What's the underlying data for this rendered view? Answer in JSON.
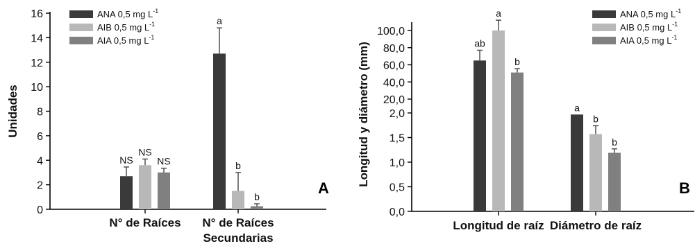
{
  "chart_data": [
    {
      "type": "bar",
      "panel_label": "A",
      "ylabel": "Unidades",
      "ylim": [
        0,
        16
      ],
      "yticks": [
        "0",
        "2",
        "4",
        "6",
        "8",
        "10",
        "12",
        "14",
        "16"
      ],
      "yticks_values": [
        0,
        2,
        4,
        6,
        8,
        10,
        12,
        14,
        16
      ],
      "categories": [
        {
          "lines": [
            "N° de Raíces"
          ]
        },
        {
          "lines": [
            "N° de Raíces",
            "Secundarias"
          ]
        }
      ],
      "series": [
        {
          "name": "ANA",
          "dose": "0,5 mg L",
          "sup": "-1",
          "color": "#3a3a3a",
          "values": [
            2.7,
            12.7
          ],
          "errors": [
            0.75,
            2.1
          ],
          "annotations": [
            "NS",
            "a"
          ]
        },
        {
          "name": "AIB",
          "dose": " 0,5 mg L",
          "sup": "-1",
          "color": "#b8b8b8",
          "values": [
            3.6,
            1.5
          ],
          "errors": [
            0.5,
            1.5
          ],
          "annotations": [
            "NS",
            "b"
          ]
        },
        {
          "name": "AIA",
          "dose": " 0,5 mg L",
          "sup": "-1",
          "color": "#808080",
          "values": [
            3.0,
            0.25
          ],
          "errors": [
            0.35,
            0.2
          ],
          "annotations": [
            "NS",
            "b"
          ]
        }
      ],
      "legend_position": "top-left"
    },
    {
      "type": "bar",
      "panel_label": "B",
      "ylabel": "Longitud y diámetro (mm)",
      "broken_axis": true,
      "lower_ylim": [
        0,
        2
      ],
      "upper_ylim": [
        20,
        100
      ],
      "yticks": [
        "0,0",
        "0,5",
        "1,0",
        "1,5",
        "2,0",
        "20,0",
        "40,0",
        "60,0",
        "80,0",
        "100,0"
      ],
      "yticks_values": [
        0,
        0.5,
        1.0,
        1.5,
        2.0,
        20,
        40,
        60,
        80,
        100
      ],
      "categories": [
        {
          "lines": [
            "Longitud de raíz"
          ]
        },
        {
          "lines": [
            "Diámetro de raíz"
          ]
        }
      ],
      "series": [
        {
          "name": "ANA",
          "dose": "0,5 mg L",
          "sup": "-1",
          "color": "#3a3a3a",
          "values": [
            65,
            2.02
          ],
          "errors": [
            12,
            0.0
          ],
          "annotations": [
            "ab",
            "a"
          ]
        },
        {
          "name": "AIB",
          "dose": " 0,5 mg L",
          "sup": "-1",
          "color": "#b8b8b8",
          "values": [
            100,
            1.57
          ],
          "errors": [
            12,
            0.17
          ],
          "annotations": [
            "a",
            "b"
          ]
        },
        {
          "name": "AIA",
          "dose": " 0,5 mg L",
          "sup": "-1",
          "color": "#808080",
          "values": [
            51,
            1.19
          ],
          "errors": [
            4.5,
            0.08
          ],
          "annotations": [
            "b",
            "b"
          ]
        }
      ],
      "legend_position": "top-right"
    }
  ]
}
